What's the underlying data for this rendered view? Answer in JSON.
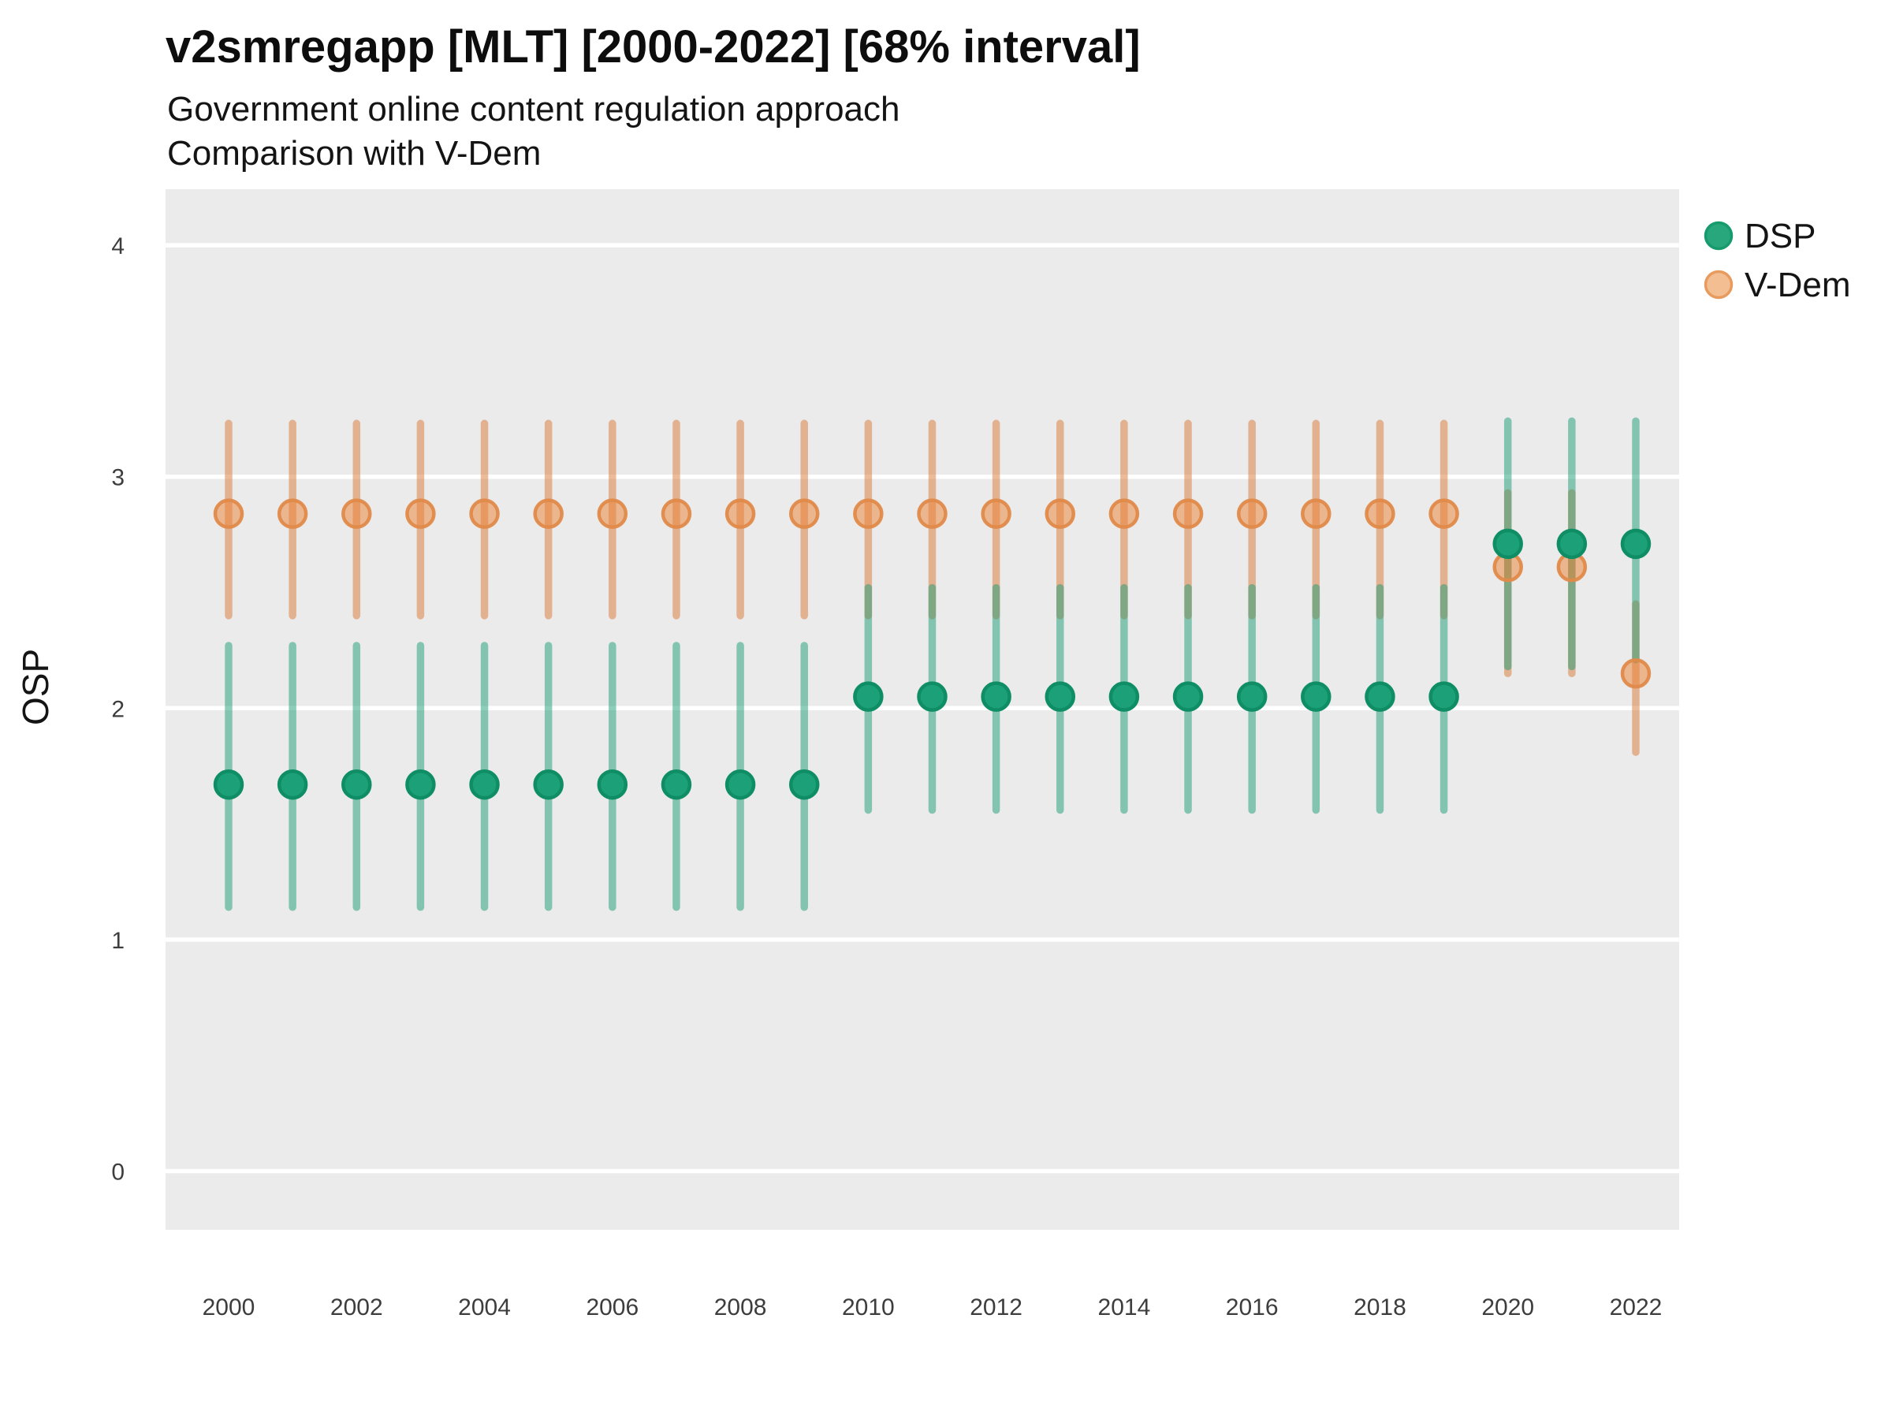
{
  "header": {
    "title": "v2smregapp [MLT] [2000-2022] [68% interval]",
    "subtitle1": "Government online content regulation approach",
    "subtitle2": "Comparison with V-Dem"
  },
  "axes": {
    "ylabel": "OSP",
    "x_tick_labels": [
      "2000",
      "2002",
      "2004",
      "2006",
      "2008",
      "2010",
      "2012",
      "2014",
      "2016",
      "2018",
      "2020",
      "2022"
    ],
    "y_tick_labels": [
      "0",
      "1",
      "2",
      "3",
      "4"
    ]
  },
  "legend": {
    "items": [
      {
        "label": "DSP"
      },
      {
        "label": "V-Dem"
      }
    ]
  },
  "style": {
    "panel_background": "#EBEBEB",
    "gridline_color": "#FFFFFF",
    "tick_label_color": "#3d3d3d",
    "series_colors": {
      "DSP": "#1B9E77",
      "V-Dem": "#D95F02"
    }
  },
  "chart_data": {
    "type": "scatter",
    "title": "v2smregapp [MLT] [2000-2022] [68% interval]",
    "subtitle": [
      "Government online content regulation approach",
      "Comparison with V-Dem"
    ],
    "xlabel": "",
    "ylabel": "OSP",
    "interval": "68%",
    "x_ticks": [
      2000,
      2002,
      2004,
      2006,
      2008,
      2010,
      2012,
      2014,
      2016,
      2018,
      2020,
      2022
    ],
    "y_ticks": [
      0,
      1,
      2,
      3,
      4
    ],
    "ylim": [
      -0.25,
      4.24
    ],
    "grid": "major-horizontal-white",
    "legend_position": "right-top",
    "marker": "point-with-vertical-interval-bar",
    "series": [
      {
        "name": "DSP",
        "color": "#1B9E77",
        "bar_color": "rgba(27,158,119,0.5)",
        "point_fill": "#1CA077",
        "point_stroke": "#0F8E66",
        "legend_fill": "#29A77C",
        "legend_stroke": "#179A6C",
        "points": [
          {
            "year": 2000,
            "est": 1.67,
            "lo": 1.14,
            "hi": 2.27
          },
          {
            "year": 2001,
            "est": 1.67,
            "lo": 1.14,
            "hi": 2.27
          },
          {
            "year": 2002,
            "est": 1.67,
            "lo": 1.14,
            "hi": 2.27
          },
          {
            "year": 2003,
            "est": 1.67,
            "lo": 1.14,
            "hi": 2.27
          },
          {
            "year": 2004,
            "est": 1.67,
            "lo": 1.14,
            "hi": 2.27
          },
          {
            "year": 2005,
            "est": 1.67,
            "lo": 1.14,
            "hi": 2.27
          },
          {
            "year": 2006,
            "est": 1.67,
            "lo": 1.14,
            "hi": 2.27
          },
          {
            "year": 2007,
            "est": 1.67,
            "lo": 1.14,
            "hi": 2.27
          },
          {
            "year": 2008,
            "est": 1.67,
            "lo": 1.14,
            "hi": 2.27
          },
          {
            "year": 2009,
            "est": 1.67,
            "lo": 1.14,
            "hi": 2.27
          },
          {
            "year": 2010,
            "est": 2.05,
            "lo": 1.56,
            "hi": 2.52
          },
          {
            "year": 2011,
            "est": 2.05,
            "lo": 1.56,
            "hi": 2.52
          },
          {
            "year": 2012,
            "est": 2.05,
            "lo": 1.56,
            "hi": 2.52
          },
          {
            "year": 2013,
            "est": 2.05,
            "lo": 1.56,
            "hi": 2.52
          },
          {
            "year": 2014,
            "est": 2.05,
            "lo": 1.56,
            "hi": 2.52
          },
          {
            "year": 2015,
            "est": 2.05,
            "lo": 1.56,
            "hi": 2.52
          },
          {
            "year": 2016,
            "est": 2.05,
            "lo": 1.56,
            "hi": 2.52
          },
          {
            "year": 2017,
            "est": 2.05,
            "lo": 1.56,
            "hi": 2.52
          },
          {
            "year": 2018,
            "est": 2.05,
            "lo": 1.56,
            "hi": 2.52
          },
          {
            "year": 2019,
            "est": 2.05,
            "lo": 1.56,
            "hi": 2.52
          },
          {
            "year": 2020,
            "est": 2.71,
            "lo": 2.18,
            "hi": 3.24
          },
          {
            "year": 2021,
            "est": 2.71,
            "lo": 2.18,
            "hi": 3.24
          },
          {
            "year": 2022,
            "est": 2.71,
            "lo": 2.21,
            "hi": 3.24
          }
        ]
      },
      {
        "name": "V-Dem",
        "color": "#D95F02",
        "bar_color": "rgba(217,119,54,0.5)",
        "point_fill": "rgba(235,130,50,0.5)",
        "point_stroke": "rgba(224,138,74,0.95)",
        "legend_fill": "#F2BE92",
        "legend_stroke": "#E89B5F",
        "points": [
          {
            "year": 2000,
            "est": 2.84,
            "lo": 2.4,
            "hi": 3.23
          },
          {
            "year": 2001,
            "est": 2.84,
            "lo": 2.4,
            "hi": 3.23
          },
          {
            "year": 2002,
            "est": 2.84,
            "lo": 2.4,
            "hi": 3.23
          },
          {
            "year": 2003,
            "est": 2.84,
            "lo": 2.4,
            "hi": 3.23
          },
          {
            "year": 2004,
            "est": 2.84,
            "lo": 2.4,
            "hi": 3.23
          },
          {
            "year": 2005,
            "est": 2.84,
            "lo": 2.4,
            "hi": 3.23
          },
          {
            "year": 2006,
            "est": 2.84,
            "lo": 2.4,
            "hi": 3.23
          },
          {
            "year": 2007,
            "est": 2.84,
            "lo": 2.4,
            "hi": 3.23
          },
          {
            "year": 2008,
            "est": 2.84,
            "lo": 2.4,
            "hi": 3.23
          },
          {
            "year": 2009,
            "est": 2.84,
            "lo": 2.4,
            "hi": 3.23
          },
          {
            "year": 2010,
            "est": 2.84,
            "lo": 2.4,
            "hi": 3.23
          },
          {
            "year": 2011,
            "est": 2.84,
            "lo": 2.4,
            "hi": 3.23
          },
          {
            "year": 2012,
            "est": 2.84,
            "lo": 2.4,
            "hi": 3.23
          },
          {
            "year": 2013,
            "est": 2.84,
            "lo": 2.4,
            "hi": 3.23
          },
          {
            "year": 2014,
            "est": 2.84,
            "lo": 2.4,
            "hi": 3.23
          },
          {
            "year": 2015,
            "est": 2.84,
            "lo": 2.4,
            "hi": 3.23
          },
          {
            "year": 2016,
            "est": 2.84,
            "lo": 2.4,
            "hi": 3.23
          },
          {
            "year": 2017,
            "est": 2.84,
            "lo": 2.4,
            "hi": 3.23
          },
          {
            "year": 2018,
            "est": 2.84,
            "lo": 2.4,
            "hi": 3.23
          },
          {
            "year": 2019,
            "est": 2.84,
            "lo": 2.4,
            "hi": 3.23
          },
          {
            "year": 2020,
            "est": 2.61,
            "lo": 2.15,
            "hi": 2.93
          },
          {
            "year": 2021,
            "est": 2.61,
            "lo": 2.15,
            "hi": 2.93
          },
          {
            "year": 2022,
            "est": 2.15,
            "lo": 1.81,
            "hi": 2.45
          }
        ]
      }
    ]
  }
}
